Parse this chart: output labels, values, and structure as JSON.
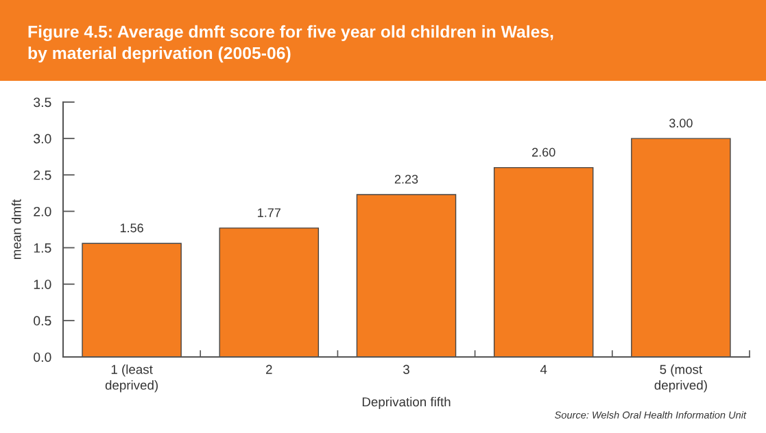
{
  "chart_data": {
    "type": "bar",
    "title": "Figure 4.5: Average dmft score for five year old children in Wales,\nby material deprivation (2005-06)",
    "xlabel": "Deprivation fifth",
    "ylabel": "mean dmft",
    "categories": [
      "1 (least\ndeprived)",
      "2",
      "3",
      "4",
      "5 (most\ndeprived)"
    ],
    "values": [
      1.56,
      1.77,
      2.23,
      2.6,
      3.0
    ],
    "value_labels": [
      "1.56",
      "1.77",
      "2.23",
      "2.60",
      "3.00"
    ],
    "color": "#f47d20",
    "ylim": [
      0,
      3.5
    ],
    "yticks": [
      {
        "value": 0,
        "label": "0.0"
      },
      {
        "value": 0.5,
        "label": "0.5"
      },
      {
        "value": 1,
        "label": "1.0"
      },
      {
        "value": 1.5,
        "label": "1.5"
      },
      {
        "value": 2,
        "label": "2.0"
      },
      {
        "value": 2.5,
        "label": "2.5"
      },
      {
        "value": 3,
        "label": "3.0"
      },
      {
        "value": 3.5,
        "label": "3.5"
      }
    ],
    "grid": false,
    "legend": false,
    "annotations": [
      "Source: Welsh Oral Health Information Unit"
    ]
  }
}
